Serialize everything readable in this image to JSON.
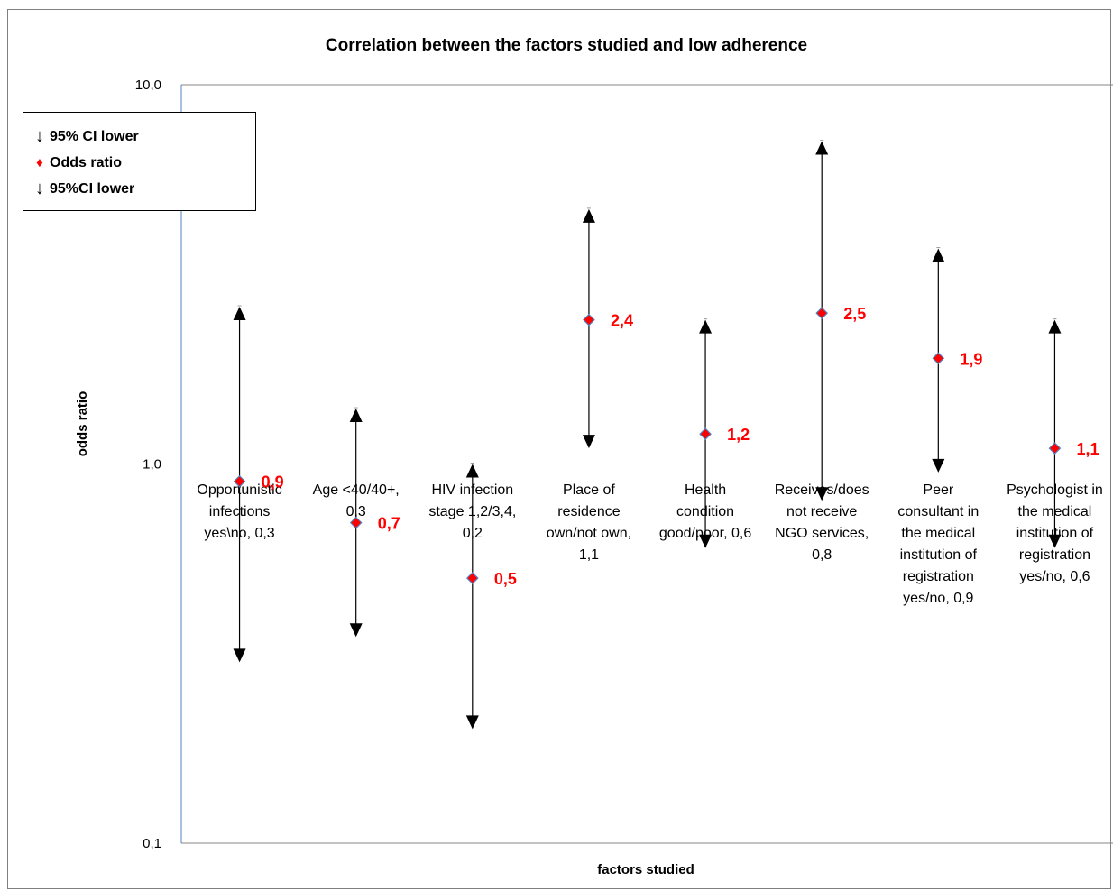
{
  "chart_data": {
    "type": "scatter",
    "title": "Correlation between the factors studied and low adherence",
    "xlabel": "factors studied",
    "ylabel": "odds ratio",
    "yscale": "log",
    "ylim": [
      0.1,
      10
    ],
    "yticks": [
      "0,1",
      "1,0",
      "10,0"
    ],
    "grid": "horizontal",
    "legend_placement": "top-left",
    "legend": [
      {
        "symbol": "↓",
        "label": "95% CI lower"
      },
      {
        "symbol": "♦",
        "label": "Odds ratio"
      },
      {
        "symbol": "↓",
        "label": "95%CI lower"
      }
    ],
    "categories": [
      "Opportunistic infections yes\\no, 0,3",
      "Age <40/40+, 0,3",
      "HIV infection stage 1,2/3,4, 0,2",
      "Place of residence own/not own, 1,1",
      "Health condition good/poor, 0,6",
      "Receives/does not receive NGO services, 0,8",
      "Peer consultant in the medical institution of registration yes/no, 0,9",
      "Psychologist in the medical institution of registration yes/no, 0,6"
    ],
    "category_lines": [
      [
        "Opportunistic",
        "infections",
        "yes\\no, 0,3"
      ],
      [
        "Age <40/40+,",
        "0,3"
      ],
      [
        "HIV infection",
        "stage 1,2/3,4,",
        "0,2"
      ],
      [
        "Place of",
        "residence",
        "own/not own,",
        "1,1"
      ],
      [
        "Health",
        "condition",
        "good/poor, 0,6"
      ],
      [
        "Receives/does",
        "not receive",
        "NGO services,",
        "0,8"
      ],
      [
        "Peer",
        "consultant in",
        "the medical",
        "institution of",
        "registration",
        "yes/no, 0,9"
      ],
      [
        "Psychologist in",
        "the medical",
        "institution of",
        "registration",
        "yes/no, 0,6"
      ]
    ],
    "series": [
      {
        "name": "Odds ratio",
        "values": [
          0.9,
          0.7,
          0.5,
          2.4,
          1.2,
          2.5,
          1.9,
          1.1
        ],
        "labels": [
          "0,9",
          "0,7",
          "0,5",
          "2,4",
          "1,2",
          "2,5",
          "1,9",
          "1,1"
        ],
        "color": "#ff0000"
      },
      {
        "name": "95% CI lower",
        "values": [
          0.3,
          0.35,
          0.2,
          1.1,
          0.6,
          0.8,
          0.95,
          0.6
        ]
      },
      {
        "name": "95%CI lower",
        "values": [
          2.6,
          1.4,
          1.0,
          4.7,
          2.4,
          7.1,
          3.7,
          2.4
        ]
      }
    ]
  },
  "colors": {
    "marker_fill": "#ff0000",
    "marker_edge": "#4f81bd",
    "errorbar": "#000000",
    "gridline": "#868686",
    "y_axis": "#4f81bd"
  }
}
